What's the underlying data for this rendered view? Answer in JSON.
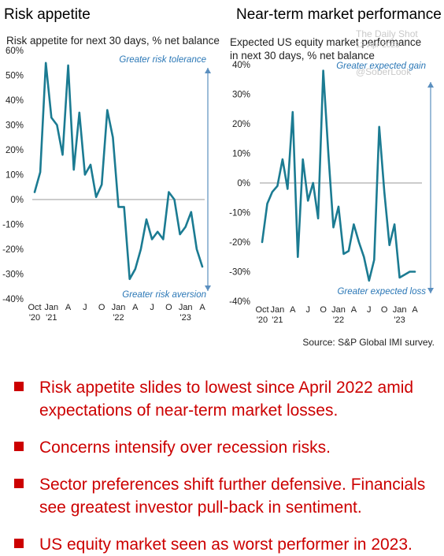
{
  "left_panel": {
    "title": "Risk appetite",
    "subtitle": "Risk appetite for next 30 days, % net balance"
  },
  "right_panel": {
    "title": "Near-term market performance",
    "subtitle": "Expected US equity market performance in next 30 days, % net balance"
  },
  "watermark": {
    "line1": "The Daily Shot",
    "line2": "12-Apr-2023",
    "line3": "@SoberLook"
  },
  "source": "Source: S&P Global IMI survey.",
  "bullets": [
    "Risk appetite slides to lowest since April 2022 amid expectations of near-term market losses.",
    "Concerns intensify over recession risks.",
    "Sector preferences shift further defensive. Financials see greatest investor pull-back in sentiment.",
    "US equity market seen as worst performer in 2023."
  ],
  "colors": {
    "line": "#1b7b92",
    "arrow": "#5b8fbf",
    "annotation": "#2a77b6",
    "bullet": "#cc0000"
  },
  "chart_data": [
    {
      "type": "line",
      "title": "Risk appetite",
      "ylabel": "Risk appetite for next 30 days, % net balance",
      "ylim": [
        -40,
        60
      ],
      "y_ticks": [
        "60%",
        "50%",
        "40%",
        "30%",
        "20%",
        "10%",
        "0%",
        "-10%",
        "-20%",
        "-30%",
        "-40%"
      ],
      "x_ticks": [
        {
          "label": "Oct",
          "sub": "'20"
        },
        {
          "label": "Jan",
          "sub": "'21"
        },
        {
          "label": "A",
          "sub": ""
        },
        {
          "label": "J",
          "sub": ""
        },
        {
          "label": "O",
          "sub": ""
        },
        {
          "label": "Jan",
          "sub": "'22"
        },
        {
          "label": "A",
          "sub": ""
        },
        {
          "label": "J",
          "sub": ""
        },
        {
          "label": "O",
          "sub": ""
        },
        {
          "label": "Jan",
          "sub": "'23"
        },
        {
          "label": "A",
          "sub": ""
        }
      ],
      "x_start": "2020-10",
      "x_end": "2023-04",
      "annotations": {
        "top": "Greater risk tolerance",
        "bottom": "Greater risk aversion"
      },
      "series": [
        {
          "x": [
            "2020-10",
            "2020-11",
            "2020-12",
            "2021-01",
            "2021-02",
            "2021-03",
            "2021-04",
            "2021-05",
            "2021-06",
            "2021-07",
            "2021-08",
            "2021-09",
            "2021-10",
            "2021-11",
            "2021-12",
            "2022-01",
            "2022-02",
            "2022-03",
            "2022-04",
            "2022-05",
            "2022-06",
            "2022-07",
            "2022-08",
            "2022-09",
            "2022-10",
            "2022-11",
            "2022-12",
            "2023-01",
            "2023-02",
            "2023-03",
            "2023-04"
          ],
          "values": [
            3,
            11,
            55,
            33,
            30,
            18,
            54,
            12,
            35,
            10,
            14,
            1,
            6,
            36,
            25,
            -3,
            -3,
            -32,
            -28,
            -20,
            -8,
            -16,
            -13,
            -16,
            3,
            0,
            -14,
            -11,
            -5,
            -20,
            -27
          ]
        }
      ]
    },
    {
      "type": "line",
      "title": "Near-term market performance",
      "ylabel": "Expected US equity market performance in next 30 days, % net balance",
      "ylim": [
        -40,
        40
      ],
      "y_ticks": [
        "40%",
        "30%",
        "20%",
        "10%",
        "0%",
        "-10%",
        "-20%",
        "-30%",
        "-40%"
      ],
      "x_ticks": [
        {
          "label": "Oct",
          "sub": "'20"
        },
        {
          "label": "Jan",
          "sub": "'21"
        },
        {
          "label": "A",
          "sub": ""
        },
        {
          "label": "J",
          "sub": ""
        },
        {
          "label": "O",
          "sub": ""
        },
        {
          "label": "Jan",
          "sub": "'22"
        },
        {
          "label": "A",
          "sub": ""
        },
        {
          "label": "J",
          "sub": ""
        },
        {
          "label": "O",
          "sub": ""
        },
        {
          "label": "Jan",
          "sub": "'23"
        },
        {
          "label": "A",
          "sub": ""
        }
      ],
      "x_start": "2020-10",
      "x_end": "2023-04",
      "annotations": {
        "top": "Greater expected gain",
        "bottom": "Greater  expected loss"
      },
      "series": [
        {
          "x": [
            "2020-10",
            "2020-11",
            "2020-12",
            "2021-01",
            "2021-02",
            "2021-03",
            "2021-04",
            "2021-05",
            "2021-06",
            "2021-07",
            "2021-08",
            "2021-09",
            "2021-10",
            "2021-11",
            "2021-12",
            "2022-01",
            "2022-02",
            "2022-03",
            "2022-04",
            "2022-05",
            "2022-06",
            "2022-07",
            "2022-08",
            "2022-09",
            "2022-10",
            "2022-11",
            "2022-12",
            "2023-01",
            "2023-02",
            "2023-03",
            "2023-04"
          ],
          "values": [
            -20,
            -7,
            -3,
            -1,
            8,
            -2,
            24,
            -25,
            8,
            -6,
            0,
            -12,
            38,
            10,
            -15,
            -8,
            -24,
            -23,
            -14,
            -20,
            -25,
            -33,
            -26,
            19,
            -3,
            -21,
            -14,
            -32,
            -31,
            -30,
            -30
          ]
        }
      ]
    }
  ]
}
